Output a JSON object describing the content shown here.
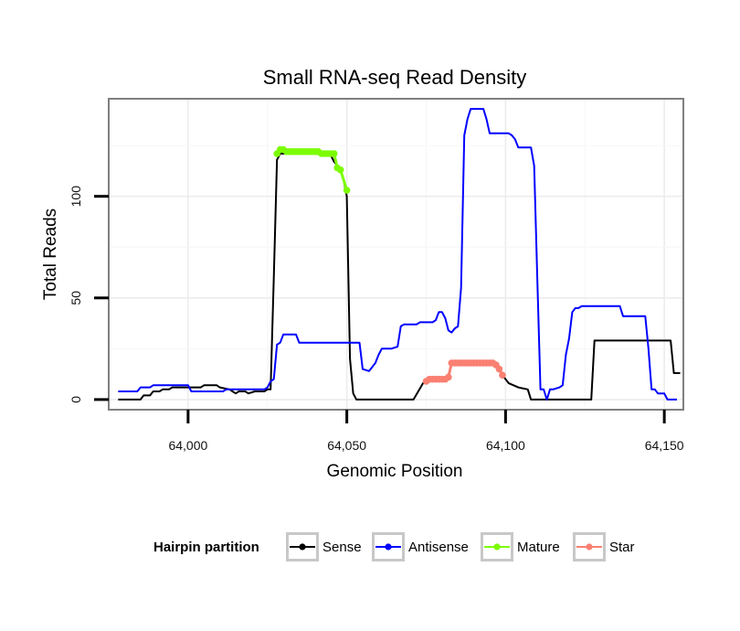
{
  "chart_data": {
    "type": "line",
    "title": "Small RNA-seq Read Density",
    "xlabel": "Genomic Position",
    "ylabel": "Total Reads",
    "xlim": [
      63975,
      64156
    ],
    "ylim": [
      -5,
      148
    ],
    "x_ticks": [
      64000,
      64050,
      64100,
      64150
    ],
    "x_tick_labels": [
      "64,000",
      "64,050",
      "64,100",
      "64,150"
    ],
    "y_ticks": [
      0,
      50,
      100
    ],
    "y_tick_labels": [
      "0",
      "50",
      "100"
    ],
    "grid": true,
    "legend": {
      "title": "Hairpin partition",
      "position": "bottom",
      "entries": [
        {
          "label": "Sense",
          "color": "#000000"
        },
        {
          "label": "Antisense",
          "color": "#0000ff"
        },
        {
          "label": "Mature",
          "color": "#7cfc00"
        },
        {
          "label": "Star",
          "color": "#fa8072"
        }
      ]
    },
    "series": [
      {
        "name": "Sense",
        "color": "#000000",
        "style": "line",
        "points": [
          [
            63978,
            0
          ],
          [
            63985,
            0
          ],
          [
            63986,
            2
          ],
          [
            63988,
            2
          ],
          [
            63989,
            4
          ],
          [
            63991,
            4
          ],
          [
            63992,
            5
          ],
          [
            63994,
            5
          ],
          [
            63995,
            6
          ],
          [
            64004,
            6
          ],
          [
            64005,
            7
          ],
          [
            64009,
            7
          ],
          [
            64010,
            6
          ],
          [
            64013,
            5
          ],
          [
            64015,
            3
          ],
          [
            64016,
            4
          ],
          [
            64018,
            4
          ],
          [
            64019,
            3
          ],
          [
            64021,
            4
          ],
          [
            64024,
            4
          ],
          [
            64025,
            5
          ],
          [
            64026,
            5
          ],
          [
            64027,
            60
          ],
          [
            64028,
            118
          ],
          [
            64029,
            121
          ],
          [
            64040,
            121
          ],
          [
            64045,
            120
          ],
          [
            64046,
            117
          ],
          [
            64048,
            113
          ],
          [
            64049,
            108
          ],
          [
            64050,
            100
          ],
          [
            64051,
            20
          ],
          [
            64052,
            3
          ],
          [
            64053,
            0
          ],
          [
            64071,
            0
          ],
          [
            64074,
            8
          ],
          [
            64075,
            9
          ],
          [
            64078,
            9
          ],
          [
            64079,
            10
          ],
          [
            64081,
            10
          ],
          [
            64082,
            12
          ],
          [
            64083,
            17
          ],
          [
            64086,
            18
          ],
          [
            64096,
            18
          ],
          [
            64097,
            17
          ],
          [
            64098,
            15
          ],
          [
            64099,
            12
          ],
          [
            64101,
            8
          ],
          [
            64104,
            6
          ],
          [
            64107,
            5
          ],
          [
            64108,
            0
          ],
          [
            64127,
            0
          ],
          [
            64128,
            29
          ],
          [
            64152,
            29
          ],
          [
            64153,
            13
          ],
          [
            64155,
            13
          ]
        ]
      },
      {
        "name": "Antisense",
        "color": "#0000ff",
        "style": "line",
        "points": [
          [
            63978,
            4
          ],
          [
            63984,
            4
          ],
          [
            63985,
            6
          ],
          [
            63988,
            6
          ],
          [
            63989,
            7
          ],
          [
            64000,
            7
          ],
          [
            64001,
            4
          ],
          [
            64011,
            4
          ],
          [
            64012,
            5
          ],
          [
            64024,
            5
          ],
          [
            64025,
            6
          ],
          [
            64026,
            9
          ],
          [
            64027,
            10
          ],
          [
            64028,
            27
          ],
          [
            64029,
            28
          ],
          [
            64030,
            32
          ],
          [
            64034,
            32
          ],
          [
            64035,
            28
          ],
          [
            64054,
            28
          ],
          [
            64055,
            15
          ],
          [
            64057,
            14
          ],
          [
            64059,
            18
          ],
          [
            64060,
            22
          ],
          [
            64061,
            25
          ],
          [
            64064,
            25
          ],
          [
            64066,
            26
          ],
          [
            64067,
            36
          ],
          [
            64068,
            37
          ],
          [
            64072,
            37
          ],
          [
            64073,
            38
          ],
          [
            64077,
            38
          ],
          [
            64078,
            39
          ],
          [
            64079,
            43
          ],
          [
            64080,
            43
          ],
          [
            64081,
            40
          ],
          [
            64082,
            34
          ],
          [
            64083,
            33
          ],
          [
            64084,
            35
          ],
          [
            64085,
            36
          ],
          [
            64086,
            55
          ],
          [
            64087,
            130
          ],
          [
            64088,
            138
          ],
          [
            64089,
            143
          ],
          [
            64093,
            143
          ],
          [
            64094,
            138
          ],
          [
            64095,
            131
          ],
          [
            64101,
            131
          ],
          [
            64102,
            130
          ],
          [
            64103,
            128
          ],
          [
            64104,
            124
          ],
          [
            64108,
            124
          ],
          [
            64109,
            115
          ],
          [
            64110,
            60
          ],
          [
            64111,
            5
          ],
          [
            64112,
            5
          ],
          [
            64113,
            0
          ],
          [
            64114,
            5
          ],
          [
            64115,
            5
          ],
          [
            64117,
            6
          ],
          [
            64118,
            7
          ],
          [
            64119,
            22
          ],
          [
            64120,
            30
          ],
          [
            64121,
            43
          ],
          [
            64122,
            45
          ],
          [
            64123,
            45
          ],
          [
            64124,
            46
          ],
          [
            64136,
            46
          ],
          [
            64137,
            41
          ],
          [
            64144,
            41
          ],
          [
            64145,
            25
          ],
          [
            64146,
            5
          ],
          [
            64147,
            5
          ],
          [
            64148,
            3
          ],
          [
            64150,
            3
          ],
          [
            64151,
            0
          ],
          [
            64154,
            0
          ]
        ]
      },
      {
        "name": "Mature",
        "color": "#7cfc00",
        "style": "line-points",
        "points": [
          [
            64028,
            121
          ],
          [
            64029,
            123
          ],
          [
            64030,
            123
          ],
          [
            64031,
            122
          ],
          [
            64032,
            122
          ],
          [
            64033,
            122
          ],
          [
            64034,
            122
          ],
          [
            64035,
            122
          ],
          [
            64036,
            122
          ],
          [
            64037,
            122
          ],
          [
            64038,
            122
          ],
          [
            64039,
            122
          ],
          [
            64040,
            122
          ],
          [
            64041,
            122
          ],
          [
            64042,
            121
          ],
          [
            64043,
            121
          ],
          [
            64044,
            121
          ],
          [
            64045,
            121
          ],
          [
            64046,
            121
          ],
          [
            64047,
            114
          ],
          [
            64048,
            113
          ],
          [
            64050,
            103
          ]
        ]
      },
      {
        "name": "Star",
        "color": "#fa8072",
        "style": "line-points",
        "points": [
          [
            64075,
            9
          ],
          [
            64076,
            10
          ],
          [
            64077,
            10
          ],
          [
            64078,
            10
          ],
          [
            64079,
            10
          ],
          [
            64080,
            10
          ],
          [
            64081,
            10
          ],
          [
            64082,
            11
          ],
          [
            64083,
            18
          ],
          [
            64084,
            18
          ],
          [
            64085,
            18
          ],
          [
            64086,
            18
          ],
          [
            64087,
            18
          ],
          [
            64088,
            18
          ],
          [
            64089,
            18
          ],
          [
            64090,
            18
          ],
          [
            64091,
            18
          ],
          [
            64092,
            18
          ],
          [
            64093,
            18
          ],
          [
            64094,
            18
          ],
          [
            64095,
            18
          ],
          [
            64096,
            18
          ],
          [
            64097,
            17
          ],
          [
            64098,
            15
          ],
          [
            64099,
            12
          ]
        ]
      }
    ]
  }
}
